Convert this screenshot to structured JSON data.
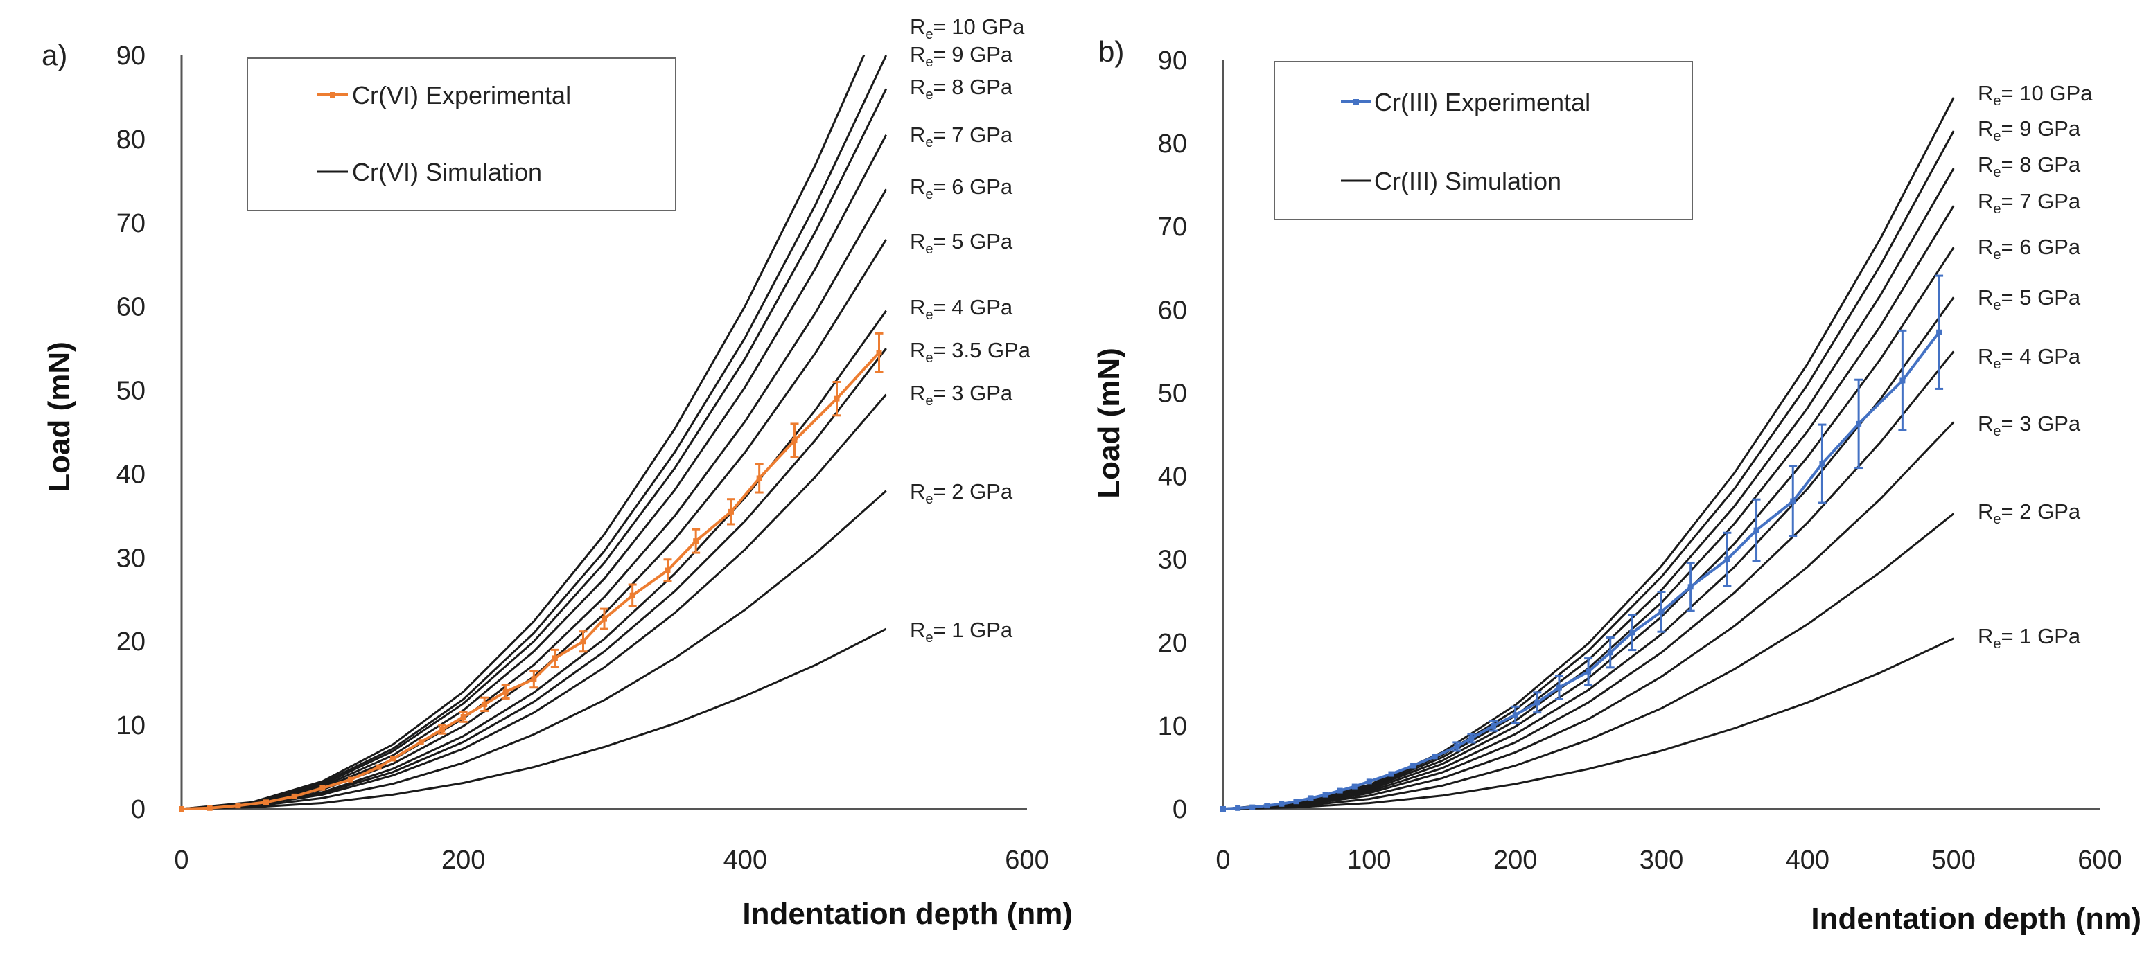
{
  "chart_data": [
    {
      "type": "line",
      "panel_label": "a)",
      "xlabel": "Indentation depth  (nm)",
      "ylabel": "Load (mN)",
      "xlim": [
        0,
        600
      ],
      "ylim": [
        0,
        90
      ],
      "xticks": [
        "0",
        "200",
        "400",
        "600"
      ],
      "yticks": [
        "0",
        "10",
        "20",
        "30",
        "40",
        "50",
        "60",
        "70",
        "80",
        "90"
      ],
      "grid": false,
      "legend": {
        "placement": "top-left",
        "entries": [
          "Cr(VI) Experimental",
          "Cr(VI) Simulation"
        ]
      },
      "colors": {
        "experimental": "#ED7D31",
        "simulation": "#1a1a1a"
      },
      "sim_x": [
        0,
        50,
        100,
        150,
        200,
        250,
        300,
        350,
        400,
        450,
        500
      ],
      "simulations": [
        {
          "prefix": "R",
          "sub": "e",
          "value": "= 10 GPa",
          "y": [
            0,
            0.8,
            3.3,
            7.7,
            14.0,
            22.4,
            32.8,
            45.4,
            60.1,
            77.0,
            96
          ]
        },
        {
          "prefix": "R",
          "sub": "e",
          "value": "= 9 GPa",
          "y": [
            0,
            0.7,
            3.1,
            7.2,
            13.1,
            21.0,
            30.8,
            42.6,
            56.3,
            72.2,
            90
          ]
        },
        {
          "prefix": "R",
          "sub": "e",
          "value": "= 8 GPa",
          "y": [
            0,
            0.7,
            2.9,
            6.9,
            12.6,
            20.0,
            29.4,
            40.7,
            53.8,
            69.0,
            86
          ]
        },
        {
          "prefix": "R",
          "sub": "e",
          "value": "= 7 GPa",
          "y": [
            0,
            0.6,
            2.7,
            6.4,
            11.8,
            18.8,
            27.5,
            38.1,
            50.4,
            64.6,
            80.5
          ]
        },
        {
          "prefix": "R",
          "sub": "e",
          "value": "= 6 GPa",
          "y": [
            0,
            0.6,
            2.5,
            5.9,
            10.8,
            17.2,
            25.3,
            35.0,
            46.3,
            59.3,
            74
          ]
        },
        {
          "prefix": "R",
          "sub": "e",
          "value": "= 5 GPa",
          "y": [
            0,
            0.5,
            2.3,
            5.4,
            9.9,
            15.8,
            23.3,
            32.2,
            42.6,
            54.5,
            68
          ]
        },
        {
          "prefix": "R",
          "sub": "e",
          "value": "= 4 GPa",
          "y": [
            0,
            0.5,
            2.0,
            4.8,
            8.7,
            13.9,
            20.3,
            28.1,
            37.2,
            47.7,
            59.5
          ]
        },
        {
          "prefix": "R",
          "sub": "e",
          "value": "= 3.5 GPa",
          "y": [
            0,
            0.4,
            1.9,
            4.4,
            8.0,
            12.8,
            18.8,
            26.0,
            34.4,
            44.1,
            55
          ]
        },
        {
          "prefix": "R",
          "sub": "e",
          "value": "= 3 GPa",
          "y": [
            0,
            0.4,
            1.7,
            4.0,
            7.2,
            11.5,
            16.9,
            23.4,
            31.0,
            39.7,
            49.5
          ]
        },
        {
          "prefix": "R",
          "sub": "e",
          "value": "= 2 GPa",
          "y": [
            0,
            0.3,
            1.3,
            3.0,
            5.5,
            8.9,
            13.0,
            18.0,
            23.8,
            30.5,
            38
          ]
        },
        {
          "prefix": "R",
          "sub": "e",
          "value": "= 1 GPa",
          "y": [
            0,
            0.2,
            0.7,
            1.7,
            3.1,
            5.0,
            7.4,
            10.2,
            13.5,
            17.2,
            21.5
          ]
        }
      ],
      "experimental": {
        "x": [
          0,
          20,
          40,
          60,
          80,
          100,
          120,
          140,
          150,
          170,
          185,
          200,
          215,
          230,
          250,
          265,
          285,
          300,
          320,
          345,
          365,
          390,
          410,
          435,
          465,
          495
        ],
        "y": [
          0,
          0.1,
          0.4,
          0.8,
          1.5,
          2.5,
          3.5,
          5,
          6,
          8,
          9.5,
          11,
          12.5,
          14,
          15.5,
          18,
          20,
          22.7,
          25.5,
          28.5,
          32,
          35.5,
          39.5,
          44,
          49,
          54.5
        ],
        "err": [
          0,
          0,
          0,
          0,
          0,
          0,
          0,
          0,
          0,
          0,
          0.5,
          0.6,
          0.8,
          0.8,
          1,
          1,
          1.2,
          1.2,
          1.3,
          1.3,
          1.4,
          1.5,
          1.7,
          2,
          2,
          2.3
        ]
      }
    },
    {
      "type": "line",
      "panel_label": "b)",
      "xlabel": "Indentation depth  (nm)",
      "ylabel": "Load (mN)",
      "xlim": [
        0,
        600
      ],
      "ylim": [
        0,
        90
      ],
      "xticks": [
        "0",
        "100",
        "200",
        "300",
        "400",
        "500",
        "600"
      ],
      "yticks": [
        "0",
        "10",
        "20",
        "30",
        "40",
        "50",
        "60",
        "70",
        "80",
        "90"
      ],
      "grid": false,
      "legend": {
        "placement": "top-left",
        "entries": [
          "Cr(III) Experimental",
          "Cr(III) Simulation"
        ]
      },
      "colors": {
        "experimental": "#4472C4",
        "simulation": "#1a1a1a"
      },
      "sim_x": [
        0,
        50,
        100,
        150,
        200,
        250,
        300,
        350,
        400,
        450,
        500
      ],
      "simulations": [
        {
          "prefix": "R",
          "sub": "e",
          "value": "= 10 GPa",
          "y": [
            0,
            0.7,
            2.9,
            6.8,
            12.5,
            19.9,
            29.2,
            40.4,
            53.5,
            68.6,
            85.5
          ]
        },
        {
          "prefix": "R",
          "sub": "e",
          "value": "= 9 GPa",
          "y": [
            0,
            0.7,
            2.8,
            6.5,
            11.9,
            19.0,
            27.9,
            38.5,
            51.0,
            65.4,
            81.5
          ]
        },
        {
          "prefix": "R",
          "sub": "e",
          "value": "= 8 GPa",
          "y": [
            0,
            0.6,
            2.6,
            6.2,
            11.2,
            17.9,
            26.3,
            36.4,
            48.2,
            61.8,
            77
          ]
        },
        {
          "prefix": "R",
          "sub": "e",
          "value": "= 7 GPa",
          "y": [
            0,
            0.6,
            2.5,
            5.8,
            10.6,
            16.9,
            24.8,
            34.3,
            45.4,
            58.1,
            72.5
          ]
        },
        {
          "prefix": "R",
          "sub": "e",
          "value": "= 6 GPa",
          "y": [
            0,
            0.5,
            2.3,
            5.4,
            9.9,
            15.7,
            23.1,
            31.9,
            42.3,
            54.1,
            67.5
          ]
        },
        {
          "prefix": "R",
          "sub": "e",
          "value": "= 5 GPa",
          "y": [
            0,
            0.5,
            2.1,
            4.9,
            9.0,
            14.3,
            21.0,
            29.1,
            38.5,
            49.3,
            61.5
          ]
        },
        {
          "prefix": "R",
          "sub": "e",
          "value": "= 4 GPa",
          "y": [
            0,
            0.4,
            1.9,
            4.4,
            8.0,
            12.8,
            18.8,
            26.0,
            34.4,
            44.1,
            55
          ]
        },
        {
          "prefix": "R",
          "sub": "e",
          "value": "= 3 GPa",
          "y": [
            0,
            0.4,
            1.6,
            3.7,
            6.8,
            10.8,
            15.9,
            22.0,
            29.1,
            37.3,
            46.5
          ]
        },
        {
          "prefix": "R",
          "sub": "e",
          "value": "= 2 GPa",
          "y": [
            0,
            0.3,
            1.2,
            2.8,
            5.2,
            8.3,
            12.1,
            16.8,
            22.2,
            28.5,
            35.5
          ]
        },
        {
          "prefix": "R",
          "sub": "e",
          "value": "= 1 GPa",
          "y": [
            0,
            0.2,
            0.7,
            1.6,
            3.0,
            4.8,
            7.0,
            9.7,
            12.8,
            16.4,
            20.5
          ]
        }
      ],
      "experimental": {
        "x": [
          0,
          10,
          20,
          30,
          40,
          50,
          60,
          70,
          80,
          90,
          100,
          115,
          130,
          145,
          160,
          170,
          185,
          200,
          215,
          230,
          250,
          265,
          280,
          300,
          320,
          345,
          365,
          390,
          410,
          435,
          465,
          490
        ],
        "y": [
          0,
          0.1,
          0.2,
          0.4,
          0.6,
          0.9,
          1.3,
          1.7,
          2.2,
          2.7,
          3.3,
          4.2,
          5.2,
          6.3,
          7.5,
          8.5,
          10,
          11.3,
          12.8,
          14.6,
          16.5,
          18.8,
          21.2,
          23.7,
          26.7,
          30,
          33.5,
          37,
          41.5,
          46.3,
          51.5,
          57.3
        ],
        "err": [
          0,
          0,
          0,
          0,
          0,
          0,
          0,
          0,
          0,
          0,
          0,
          0,
          0,
          0,
          0.5,
          0.5,
          0.6,
          1,
          1.2,
          1.4,
          1.6,
          1.8,
          2.1,
          2.4,
          2.9,
          3.2,
          3.7,
          4.2,
          4.7,
          5.3,
          6,
          6.8
        ]
      }
    }
  ]
}
